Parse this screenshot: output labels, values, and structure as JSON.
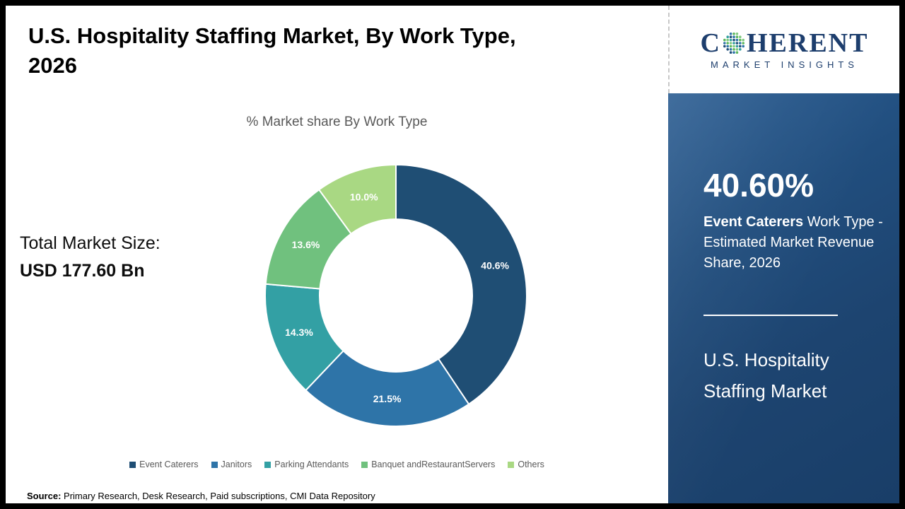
{
  "header": {
    "title_line1": "U.S. Hospitality Staffing Market, By Work Type,",
    "title_line2": "2026"
  },
  "chart_data": {
    "type": "pie",
    "subtype": "donut",
    "title": "% Market share By Work Type",
    "categories": [
      "Event Caterers",
      "Janitors",
      "Parking Attendants",
      "Banquet andRestaurantServers",
      "Others"
    ],
    "values": [
      40.6,
      21.5,
      14.3,
      13.6,
      10.0
    ],
    "data_labels": [
      "40.6%",
      "21.5%",
      "14.3%",
      "13.6%",
      "10.0%"
    ],
    "colors": [
      "#1f4e74",
      "#2e74a8",
      "#33a0a4",
      "#70c17e",
      "#a9d883"
    ],
    "units": "%",
    "legend_position": "bottom",
    "start_angle_deg": -90,
    "direction": "clockwise"
  },
  "market_size": {
    "label": "Total Market Size:",
    "value": "USD 177.60 Bn"
  },
  "source": {
    "label": "Source:",
    "text": " Primary Research, Desk Research, Paid subscriptions, CMI Data Repository"
  },
  "sidebar": {
    "logo": {
      "c": "C",
      "rest": "HERENT",
      "subtitle": "MARKET INSIGHTS"
    },
    "highlight_value": "40.60%",
    "highlight_bold": "Event Caterers",
    "highlight_rest": " Work Type - Estimated Market Revenue Share, 2026",
    "market_name_line1": "U.S. Hospitality",
    "market_name_line2": "Staffing Market",
    "panel_color": "#1f4e79",
    "logo_color": "#1d3e6d"
  }
}
